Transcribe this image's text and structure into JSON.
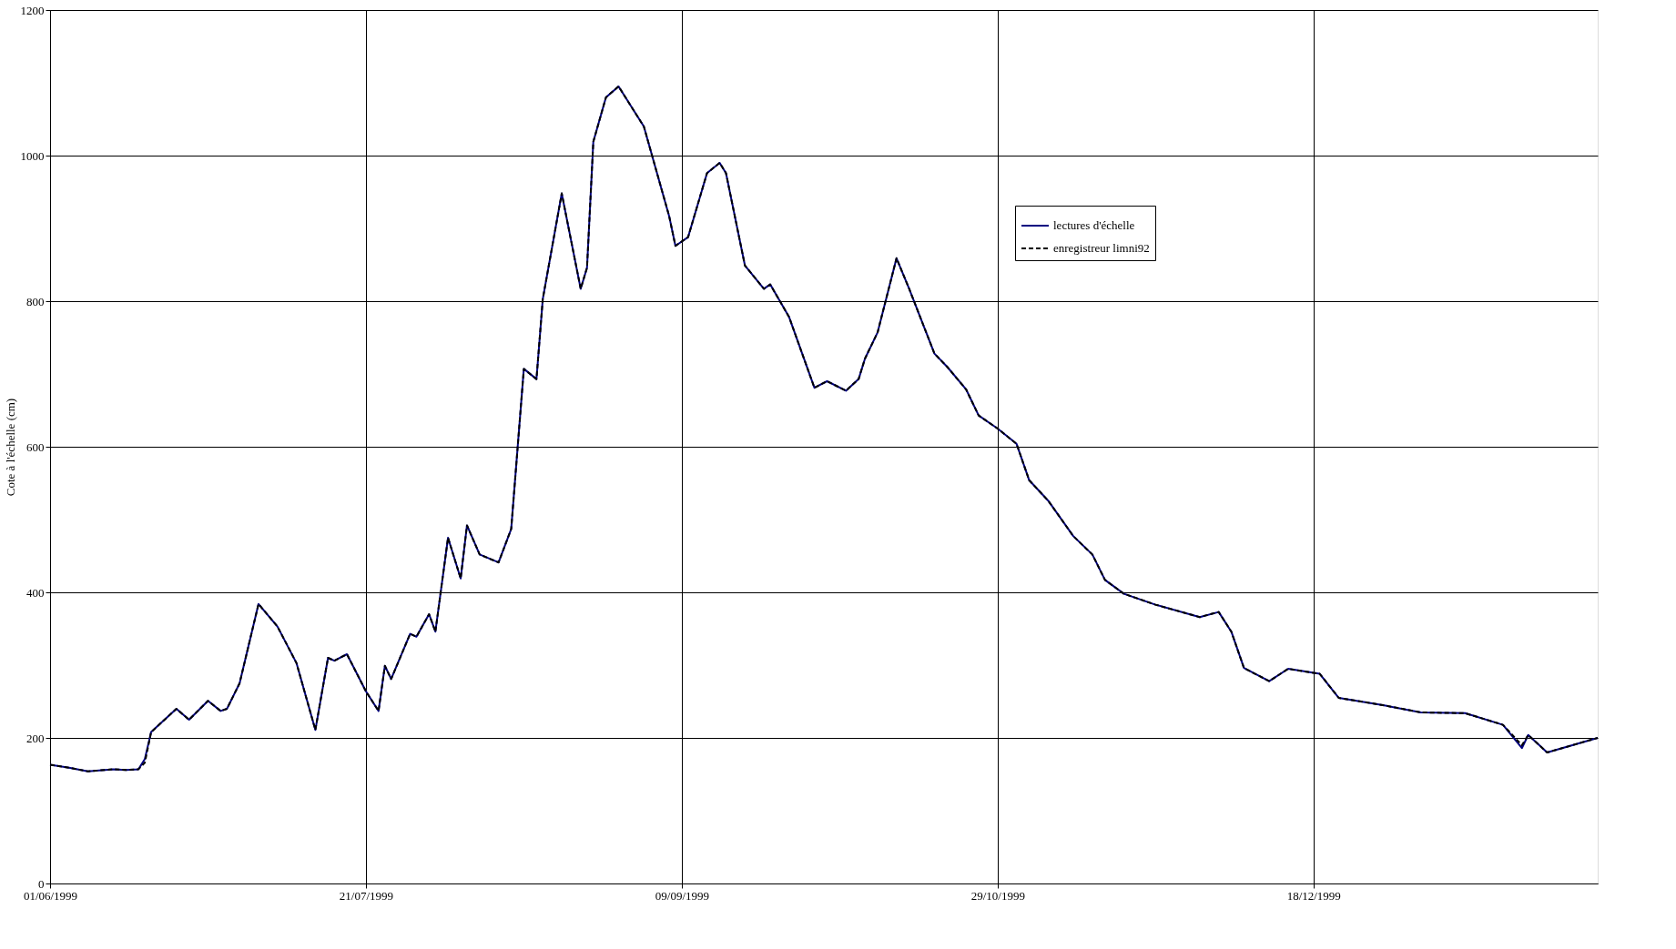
{
  "chart_data": {
    "type": "line",
    "ylabel": "Cote à l'échelle (cm)",
    "x": [
      "1999-06-01",
      "1999-06-04",
      "1999-06-07",
      "1999-06-11",
      "1999-06-13",
      "1999-06-15",
      "1999-06-16",
      "1999-06-17",
      "1999-06-21",
      "1999-06-23",
      "1999-06-26",
      "1999-06-28",
      "1999-06-29",
      "1999-07-01",
      "1999-07-04",
      "1999-07-07",
      "1999-07-10",
      "1999-07-13",
      "1999-07-15",
      "1999-07-16",
      "1999-07-18",
      "1999-07-21",
      "1999-07-23",
      "1999-07-24",
      "1999-07-25",
      "1999-07-28",
      "1999-07-29",
      "1999-07-31",
      "1999-08-01",
      "1999-08-03",
      "1999-08-05",
      "1999-08-06",
      "1999-08-08",
      "1999-08-11",
      "1999-08-13",
      "1999-08-15",
      "1999-08-17",
      "1999-08-18",
      "1999-08-21",
      "1999-08-24",
      "1999-08-25",
      "1999-08-26",
      "1999-08-28",
      "1999-08-30",
      "1999-09-03",
      "1999-09-07",
      "1999-09-08",
      "1999-09-10",
      "1999-09-13",
      "1999-09-15",
      "1999-09-16",
      "1999-09-19",
      "1999-09-22",
      "1999-09-23",
      "1999-09-26",
      "1999-09-30",
      "1999-10-02",
      "1999-10-05",
      "1999-10-07",
      "1999-10-08",
      "1999-10-10",
      "1999-10-13",
      "1999-10-15",
      "1999-10-19",
      "1999-10-21",
      "1999-10-24",
      "1999-10-26",
      "1999-10-29",
      "1999-11-01",
      "1999-11-03",
      "1999-11-06",
      "1999-11-10",
      "1999-11-13",
      "1999-11-15",
      "1999-11-18",
      "1999-11-23",
      "1999-11-30",
      "1999-12-03",
      "1999-12-05",
      "1999-12-07",
      "1999-12-11",
      "1999-12-14",
      "1999-12-19",
      "1999-12-22",
      "1999-12-29",
      "2000-01-04",
      "2000-01-11",
      "2000-01-17",
      "2000-01-20",
      "2000-01-21",
      "2000-01-24",
      "2000-01-28",
      "2000-02-01"
    ],
    "series": [
      {
        "name": "lectures d'échelle",
        "color": "#000080",
        "line_style": "solid",
        "values": [
          163,
          159,
          154,
          157,
          156,
          157,
          171,
          208,
          240,
          225,
          251,
          237,
          240,
          275,
          384,
          353,
          303,
          211,
          310,
          306,
          315,
          264,
          237,
          299,
          281,
          343,
          339,
          370,
          346,
          475,
          419,
          492,
          452,
          441,
          487,
          707,
          693,
          803,
          948,
          817,
          846,
          1019,
          1080,
          1095,
          1040,
          917,
          876,
          888,
          976,
          990,
          976,
          849,
          817,
          823,
          778,
          681,
          690,
          677,
          693,
          721,
          757,
          859,
          817,
          728,
          710,
          679,
          643,
          625,
          604,
          554,
          526,
          477,
          452,
          417,
          398,
          383,
          366,
          373,
          346,
          296,
          278,
          295,
          288,
          255,
          245,
          235,
          234,
          218,
          186,
          204,
          180,
          190,
          200
        ]
      },
      {
        "name": "enregistreur limni92",
        "color": "#000000",
        "line_style": "dashed",
        "values": [
          163,
          159,
          154,
          157,
          156,
          157,
          166,
          208,
          240,
          225,
          251,
          237,
          240,
          275,
          384,
          353,
          303,
          211,
          310,
          306,
          315,
          264,
          237,
          299,
          281,
          343,
          339,
          370,
          346,
          475,
          419,
          492,
          452,
          441,
          487,
          707,
          693,
          803,
          948,
          817,
          846,
          1019,
          1080,
          1095,
          1040,
          917,
          876,
          888,
          976,
          990,
          976,
          849,
          817,
          823,
          778,
          681,
          690,
          677,
          693,
          721,
          757,
          859,
          817,
          728,
          710,
          679,
          643,
          625,
          604,
          554,
          526,
          477,
          452,
          417,
          398,
          383,
          366,
          373,
          346,
          296,
          278,
          295,
          288,
          255,
          245,
          235,
          234,
          218,
          190,
          204,
          180,
          190,
          200
        ]
      }
    ],
    "xlim": [
      "1999-06-01",
      "2000-02-01"
    ],
    "xticks": [
      {
        "value": "1999-06-01",
        "label": "01/06/1999"
      },
      {
        "value": "1999-07-21",
        "label": "21/07/1999"
      },
      {
        "value": "1999-09-09",
        "label": "09/09/1999"
      },
      {
        "value": "1999-10-29",
        "label": "29/10/1999"
      },
      {
        "value": "1999-12-18",
        "label": "18/12/1999"
      }
    ],
    "ylim": [
      0,
      1200
    ],
    "yticks": [
      0,
      200,
      400,
      600,
      800,
      1000,
      1200
    ],
    "grid": true,
    "legend": "top right"
  }
}
